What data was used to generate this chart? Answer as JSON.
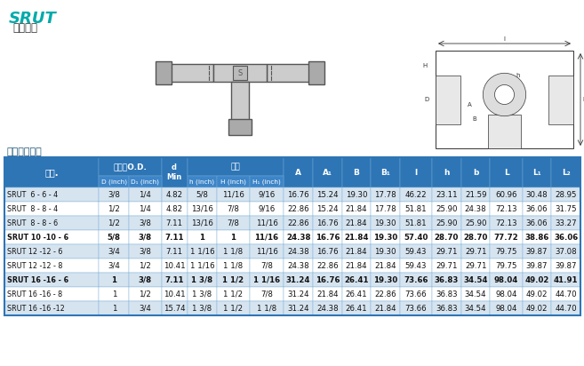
{
  "title": "SRUT",
  "subtitle": "变径三通",
  "section_title": "连接英制管道",
  "header_bg": "#2E75B6",
  "header_text_color": "#FFFFFF",
  "alt_row_bg": "#D6E4F0",
  "normal_row_bg": "#FFFFFF",
  "title_color": "#00AAAA",
  "border_color": "#2E75B6",
  "rows": [
    [
      "SRUT  6 - 6 - 4",
      "3/8",
      "1/4",
      "4.82",
      "5/8",
      "11/16",
      "9/16",
      "16.76",
      "15.24",
      "19.30",
      "17.78",
      "46.22",
      "23.11",
      "21.59",
      "60.96",
      "30.48",
      "28.95"
    ],
    [
      "SRUT  8 - 8 - 4",
      "1/2",
      "1/4",
      "4.82",
      "13/16",
      "7/8",
      "9/16",
      "22.86",
      "15.24",
      "21.84",
      "17.78",
      "51.81",
      "25.90",
      "24.38",
      "72.13",
      "36.06",
      "31.75"
    ],
    [
      "SRUT  8 - 8 - 6",
      "1/2",
      "3/8",
      "7.11",
      "13/16",
      "7/8",
      "11/16",
      "22.86",
      "16.76",
      "21.84",
      "19.30",
      "51.81",
      "25.90",
      "25.90",
      "72.13",
      "36.06",
      "33.27"
    ],
    [
      "SRUT 10 -10 - 6",
      "5/8",
      "3/8",
      "7.11",
      "1",
      "1",
      "11/16",
      "24.38",
      "16.76",
      "21.84",
      "19.30",
      "57.40",
      "28.70",
      "28.70",
      "77.72",
      "38.86",
      "36.06"
    ],
    [
      "SRUT 12 -12 - 6",
      "3/4",
      "3/8",
      "7.11",
      "1 1/16",
      "1 1/8",
      "11/16",
      "24.38",
      "16.76",
      "21.84",
      "19.30",
      "59.43",
      "29.71",
      "29.71",
      "79.75",
      "39.87",
      "37.08"
    ],
    [
      "SRUT 12 -12 - 8",
      "3/4",
      "1/2",
      "10.41",
      "1 1/16",
      "1 1/8",
      "7/8",
      "24.38",
      "22.86",
      "21.84",
      "21.84",
      "59.43",
      "29.71",
      "29.71",
      "79.75",
      "39.87",
      "39.87"
    ],
    [
      "SRUT 16 -16 - 6",
      "1",
      "3/8",
      "7.11",
      "1 3/8",
      "1 1/2",
      "1 1/16",
      "31.24",
      "16.76",
      "26.41",
      "19.30",
      "73.66",
      "36.83",
      "34.54",
      "98.04",
      "49.02",
      "41.91"
    ],
    [
      "SRUT 16 -16 - 8",
      "1",
      "1/2",
      "10.41",
      "1 3/8",
      "1 1/2",
      "7/8",
      "31.24",
      "21.84",
      "26.41",
      "22.86",
      "73.66",
      "36.83",
      "34.54",
      "98.04",
      "49.02",
      "44.70"
    ],
    [
      "SRUT 16 -16 -12",
      "1",
      "3/4",
      "15.74",
      "1 3/8",
      "1 1/2",
      "1 1/8",
      "31.24",
      "24.38",
      "26.41",
      "21.84",
      "73.66",
      "36.83",
      "34.54",
      "98.04",
      "49.02",
      "44.70"
    ]
  ],
  "bold_rows": [
    3,
    6
  ]
}
